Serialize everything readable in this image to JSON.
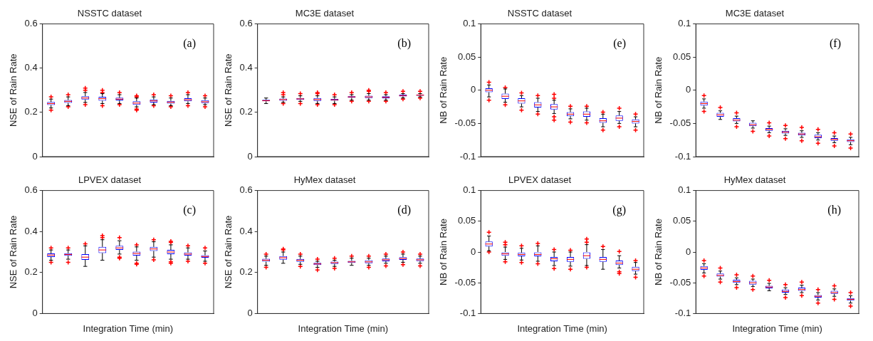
{
  "chart_data": [
    {
      "type": "box",
      "title": "NSSTC dataset",
      "ylabel": "NSE of Rain Rate",
      "annotations": [
        "(a)"
      ],
      "categories": [
        null,
        null,
        null,
        null,
        null,
        null,
        null,
        null,
        null,
        null
      ],
      "color": "#0000ff",
      "ylim": [
        0,
        0.6
      ],
      "yticks": [
        0,
        0.2,
        0.4,
        0.6
      ],
      "grid": false,
      "legend": false,
      "boxes": [
        {
          "low": 0.22,
          "q1": 0.233,
          "median": 0.24,
          "q3": 0.247,
          "high": 0.26,
          "outliers": [
            0.27,
            0.21
          ]
        },
        {
          "low": 0.23,
          "q1": 0.243,
          "median": 0.25,
          "q3": 0.256,
          "high": 0.27,
          "outliers": [
            0.28,
            0.225
          ]
        },
        {
          "low": 0.245,
          "q1": 0.258,
          "median": 0.265,
          "q3": 0.273,
          "high": 0.29,
          "outliers": [
            0.3,
            0.31,
            0.235
          ]
        },
        {
          "low": 0.24,
          "q1": 0.253,
          "median": 0.262,
          "q3": 0.27,
          "high": 0.285,
          "outliers": [
            0.29,
            0.3,
            0.23
          ]
        },
        {
          "low": 0.24,
          "q1": 0.254,
          "median": 0.26,
          "q3": 0.266,
          "high": 0.28,
          "outliers": [
            0.29,
            0.235
          ]
        },
        {
          "low": 0.225,
          "q1": 0.234,
          "median": 0.242,
          "q3": 0.25,
          "high": 0.265,
          "outliers": [
            0.27,
            0.275,
            0.215,
            0.21
          ]
        },
        {
          "low": 0.235,
          "q1": 0.245,
          "median": 0.252,
          "q3": 0.258,
          "high": 0.27,
          "outliers": [
            0.28,
            0.23
          ]
        },
        {
          "low": 0.23,
          "q1": 0.24,
          "median": 0.246,
          "q3": 0.252,
          "high": 0.265,
          "outliers": [
            0.275,
            0.225
          ]
        },
        {
          "low": 0.24,
          "q1": 0.25,
          "median": 0.257,
          "q3": 0.264,
          "high": 0.28,
          "outliers": [
            0.29,
            0.23
          ]
        },
        {
          "low": 0.235,
          "q1": 0.242,
          "median": 0.248,
          "q3": 0.255,
          "high": 0.265,
          "outliers": [
            0.275,
            0.225
          ]
        }
      ]
    },
    {
      "type": "box",
      "title": "MC3E dataset",
      "ylabel": "NSE of Rain Rate",
      "annotations": [
        "(b)"
      ],
      "categories": [
        null,
        null,
        null,
        null,
        null,
        null,
        null,
        null,
        null,
        null
      ],
      "color": "#0000ff",
      "ylim": [
        0,
        0.6
      ],
      "yticks": [
        0,
        0.2,
        0.4,
        0.6
      ],
      "grid": false,
      "legend": false,
      "boxes": [
        {
          "low": 0.24,
          "q1": 0.25,
          "median": 0.253,
          "q3": 0.257,
          "high": 0.265
        },
        {
          "low": 0.245,
          "q1": 0.253,
          "median": 0.258,
          "q3": 0.262,
          "high": 0.27,
          "outliers": [
            0.28,
            0.29,
            0.24
          ]
        },
        {
          "low": 0.25,
          "q1": 0.257,
          "median": 0.261,
          "q3": 0.265,
          "high": 0.275,
          "outliers": [
            0.285,
            0.24
          ]
        },
        {
          "low": 0.24,
          "q1": 0.252,
          "median": 0.258,
          "q3": 0.265,
          "high": 0.275,
          "outliers": [
            0.285,
            0.29,
            0.235
          ]
        },
        {
          "low": 0.24,
          "q1": 0.253,
          "median": 0.257,
          "q3": 0.261,
          "high": 0.27,
          "outliers": [
            0.28,
            0.235
          ]
        },
        {
          "low": 0.255,
          "q1": 0.266,
          "median": 0.27,
          "q3": 0.273,
          "high": 0.28,
          "outliers": [
            0.29,
            0.25
          ]
        },
        {
          "low": 0.255,
          "q1": 0.265,
          "median": 0.27,
          "q3": 0.275,
          "high": 0.285,
          "outliers": [
            0.295,
            0.3,
            0.25
          ]
        },
        {
          "low": 0.255,
          "q1": 0.264,
          "median": 0.268,
          "q3": 0.273,
          "high": 0.28,
          "outliers": [
            0.29,
            0.25
          ]
        },
        {
          "low": 0.265,
          "q1": 0.272,
          "median": 0.276,
          "q3": 0.28,
          "high": 0.285,
          "outliers": [
            0.295,
            0.26
          ]
        },
        {
          "low": 0.27,
          "q1": 0.275,
          "median": 0.278,
          "q3": 0.281,
          "high": 0.285,
          "outliers": [
            0.295,
            0.265
          ]
        }
      ]
    },
    {
      "type": "box",
      "title": "NSSTC dataset",
      "ylabel": "NB of Rain Rate",
      "annotations": [
        "(e)"
      ],
      "categories": [
        null,
        null,
        null,
        null,
        null,
        null,
        null,
        null,
        null,
        null
      ],
      "color": "#0000ff",
      "ylim": [
        -0.1,
        0.1
      ],
      "yticks": [
        -0.1,
        -0.05,
        0,
        0.05,
        0.1
      ],
      "grid": false,
      "legend": false,
      "boxes": [
        {
          "low": -0.01,
          "q1": -0.003,
          "median": 0,
          "q3": 0.003,
          "high": 0.008,
          "outliers": [
            0.012,
            -0.015
          ]
        },
        {
          "low": -0.018,
          "q1": -0.013,
          "median": -0.009,
          "q3": -0.005,
          "high": 0.002,
          "outliers": [
            0.004,
            -0.022
          ]
        },
        {
          "low": -0.025,
          "q1": -0.02,
          "median": -0.016,
          "q3": -0.012,
          "high": -0.008,
          "outliers": [
            -0.004,
            -0.03
          ]
        },
        {
          "low": -0.032,
          "q1": -0.026,
          "median": -0.022,
          "q3": -0.018,
          "high": -0.012,
          "outliers": [
            -0.008,
            -0.036
          ]
        },
        {
          "low": -0.035,
          "q1": -0.029,
          "median": -0.025,
          "q3": -0.021,
          "high": -0.015,
          "outliers": [
            -0.006,
            -0.012,
            -0.04,
            -0.045
          ]
        },
        {
          "low": -0.043,
          "q1": -0.039,
          "median": -0.036,
          "q3": -0.033,
          "high": -0.028,
          "outliers": [
            -0.024,
            -0.048
          ]
        },
        {
          "low": -0.045,
          "q1": -0.04,
          "median": -0.036,
          "q3": -0.032,
          "high": -0.027,
          "outliers": [
            -0.024,
            -0.049
          ]
        },
        {
          "low": -0.055,
          "q1": -0.049,
          "median": -0.046,
          "q3": -0.042,
          "high": -0.036,
          "outliers": [
            -0.033,
            -0.06
          ]
        },
        {
          "low": -0.05,
          "q1": -0.046,
          "median": -0.042,
          "q3": -0.038,
          "high": -0.032,
          "outliers": [
            -0.027,
            -0.055
          ]
        },
        {
          "low": -0.055,
          "q1": -0.05,
          "median": -0.047,
          "q3": -0.044,
          "high": -0.04,
          "outliers": [
            -0.036,
            -0.06
          ]
        }
      ]
    },
    {
      "type": "box",
      "title": "MC3E dataset",
      "ylabel": "NB of Rain Rate",
      "annotations": [
        "(f)"
      ],
      "categories": [
        null,
        null,
        null,
        null,
        null,
        null,
        null,
        null,
        null,
        null
      ],
      "color": "#0000ff",
      "ylim": [
        -0.1,
        0.1
      ],
      "yticks": [
        -0.1,
        -0.05,
        0,
        0.05,
        0.1
      ],
      "grid": false,
      "legend": false,
      "boxes": [
        {
          "low": -0.027,
          "q1": -0.023,
          "median": -0.02,
          "q3": -0.017,
          "high": -0.013,
          "outliers": [
            -0.008,
            -0.032
          ]
        },
        {
          "low": -0.044,
          "q1": -0.04,
          "median": -0.037,
          "q3": -0.034,
          "high": -0.031,
          "outliers": [
            -0.026
          ]
        },
        {
          "low": -0.05,
          "q1": -0.047,
          "median": -0.045,
          "q3": -0.042,
          "high": -0.039,
          "outliers": [
            -0.034,
            -0.055
          ]
        },
        {
          "low": -0.057,
          "q1": -0.054,
          "median": -0.052,
          "q3": -0.049,
          "high": -0.046,
          "outliers": [
            -0.062
          ]
        },
        {
          "low": -0.064,
          "q1": -0.061,
          "median": -0.059,
          "q3": -0.057,
          "high": -0.054,
          "outliers": [
            -0.049,
            -0.069
          ]
        },
        {
          "low": -0.068,
          "q1": -0.065,
          "median": -0.063,
          "q3": -0.061,
          "high": -0.058,
          "outliers": [
            -0.053,
            -0.073
          ]
        },
        {
          "low": -0.071,
          "q1": -0.068,
          "median": -0.066,
          "q3": -0.064,
          "high": -0.061,
          "outliers": [
            -0.056,
            -0.076
          ]
        },
        {
          "low": -0.075,
          "q1": -0.072,
          "median": -0.07,
          "q3": -0.067,
          "high": -0.064,
          "outliers": [
            -0.059,
            -0.08
          ]
        },
        {
          "low": -0.079,
          "q1": -0.076,
          "median": -0.074,
          "q3": -0.072,
          "high": -0.069,
          "outliers": [
            -0.064,
            -0.084
          ]
        },
        {
          "low": -0.082,
          "q1": -0.078,
          "median": -0.076,
          "q3": -0.074,
          "high": -0.071,
          "outliers": [
            -0.066,
            -0.087
          ]
        }
      ]
    },
    {
      "type": "box",
      "title": "LPVEX dataset",
      "xlabel": "Integration Time (min)",
      "ylabel": "NSE of Rain Rate",
      "annotations": [
        "(c)"
      ],
      "categories": [
        null,
        null,
        null,
        null,
        null,
        null,
        null,
        null,
        null,
        null
      ],
      "color": "#0000ff",
      "ylim": [
        0,
        0.6
      ],
      "yticks": [
        0,
        0.2,
        0.4,
        0.6
      ],
      "grid": false,
      "legend": false,
      "boxes": [
        {
          "low": 0.26,
          "q1": 0.276,
          "median": 0.285,
          "q3": 0.293,
          "high": 0.31,
          "outliers": [
            0.32,
            0.25
          ]
        },
        {
          "low": 0.265,
          "q1": 0.282,
          "median": 0.288,
          "q3": 0.294,
          "high": 0.31,
          "outliers": [
            0.32,
            0.25
          ]
        },
        {
          "low": 0.23,
          "q1": 0.262,
          "median": 0.275,
          "q3": 0.29,
          "high": 0.33,
          "outliers": [
            0.34
          ]
        },
        {
          "low": 0.26,
          "q1": 0.295,
          "median": 0.31,
          "q3": 0.325,
          "high": 0.36,
          "outliers": [
            0.37,
            0.38
          ]
        },
        {
          "low": 0.29,
          "q1": 0.31,
          "median": 0.32,
          "q3": 0.33,
          "high": 0.355,
          "outliers": [
            0.37,
            0.275,
            0.27
          ]
        },
        {
          "low": 0.26,
          "q1": 0.283,
          "median": 0.293,
          "q3": 0.302,
          "high": 0.325,
          "outliers": [
            0.335,
            0.245,
            0.24
          ]
        },
        {
          "low": 0.275,
          "q1": 0.305,
          "median": 0.315,
          "q3": 0.325,
          "high": 0.35,
          "outliers": [
            0.36,
            0.262
          ]
        },
        {
          "low": 0.265,
          "q1": 0.29,
          "median": 0.3,
          "q3": 0.31,
          "high": 0.335,
          "outliers": [
            0.347,
            0.352,
            0.252,
            0.245
          ]
        },
        {
          "low": 0.265,
          "q1": 0.283,
          "median": 0.29,
          "q3": 0.298,
          "high": 0.32,
          "outliers": [
            0.33,
            0.255
          ]
        },
        {
          "low": 0.255,
          "q1": 0.272,
          "median": 0.278,
          "q3": 0.284,
          "high": 0.305,
          "outliers": [
            0.32,
            0.245
          ]
        }
      ]
    },
    {
      "type": "box",
      "title": "HyMex dataset",
      "xlabel": "Integration Time (min)",
      "ylabel": "NSE of Rain Rate",
      "annotations": [
        "(d)"
      ],
      "categories": [
        null,
        null,
        null,
        null,
        null,
        null,
        null,
        null,
        null,
        null
      ],
      "color": "#0000ff",
      "ylim": [
        0,
        0.6
      ],
      "yticks": [
        0,
        0.2,
        0.4,
        0.6
      ],
      "grid": false,
      "legend": false,
      "boxes": [
        {
          "low": 0.235,
          "q1": 0.253,
          "median": 0.26,
          "q3": 0.267,
          "high": 0.28,
          "outliers": [
            0.29,
            0.225
          ]
        },
        {
          "low": 0.245,
          "q1": 0.263,
          "median": 0.272,
          "q3": 0.28,
          "high": 0.3,
          "outliers": [
            0.31,
            0.315
          ]
        },
        {
          "low": 0.24,
          "q1": 0.252,
          "median": 0.26,
          "q3": 0.266,
          "high": 0.28,
          "outliers": [
            0.29,
            0.23
          ]
        },
        {
          "low": 0.225,
          "q1": 0.237,
          "median": 0.242,
          "q3": 0.247,
          "high": 0.255,
          "outliers": [
            0.265,
            0.212
          ]
        },
        {
          "low": 0.23,
          "q1": 0.242,
          "median": 0.248,
          "q3": 0.253,
          "high": 0.26,
          "outliers": [
            0.27,
            0.22
          ]
        },
        {
          "low": 0.235,
          "q1": 0.247,
          "median": 0.252,
          "q3": 0.257,
          "high": 0.27,
          "outliers": [
            0.28
          ]
        },
        {
          "low": 0.235,
          "q1": 0.245,
          "median": 0.252,
          "q3": 0.26,
          "high": 0.27,
          "outliers": [
            0.28,
            0.225
          ]
        },
        {
          "low": 0.245,
          "q1": 0.255,
          "median": 0.262,
          "q3": 0.268,
          "high": 0.28,
          "outliers": [
            0.29,
            0.232
          ]
        },
        {
          "low": 0.25,
          "q1": 0.262,
          "median": 0.268,
          "q3": 0.275,
          "high": 0.29,
          "outliers": [
            0.3,
            0.238
          ]
        },
        {
          "low": 0.245,
          "q1": 0.256,
          "median": 0.262,
          "q3": 0.268,
          "high": 0.28,
          "outliers": [
            0.29,
            0.232
          ]
        }
      ]
    },
    {
      "type": "box",
      "title": "LPVEX dataset",
      "xlabel": "Integration Time (min)",
      "ylabel": "NB of Rain Rate",
      "annotations": [
        "(g)"
      ],
      "categories": [
        null,
        null,
        null,
        null,
        null,
        null,
        null,
        null,
        null,
        null
      ],
      "color": "#0000ff",
      "ylim": [
        -0.1,
        0.1
      ],
      "yticks": [
        -0.1,
        -0.05,
        0,
        0.05,
        0.1
      ],
      "grid": false,
      "legend": false,
      "boxes": [
        {
          "low": 0.002,
          "q1": 0.009,
          "median": 0.013,
          "q3": 0.017,
          "high": 0.026,
          "outliers": [
            0.032,
            0
          ]
        },
        {
          "low": -0.012,
          "q1": -0.006,
          "median": -0.003,
          "q3": 0,
          "high": 0.008,
          "outliers": [
            0.012,
            0.016,
            -0.016
          ]
        },
        {
          "low": -0.013,
          "q1": -0.007,
          "median": -0.004,
          "q3": -0.001,
          "high": 0.006,
          "outliers": [
            0.01,
            -0.017
          ]
        },
        {
          "low": -0.015,
          "q1": -0.007,
          "median": -0.004,
          "q3": 0,
          "high": 0.01,
          "outliers": [
            0.014,
            -0.019
          ]
        },
        {
          "low": -0.022,
          "q1": -0.015,
          "median": -0.011,
          "q3": -0.008,
          "high": 0,
          "outliers": [
            0.004,
            -0.027
          ]
        },
        {
          "low": -0.023,
          "q1": -0.016,
          "median": -0.012,
          "q3": -0.008,
          "high": 0,
          "outliers": [
            0.003,
            -0.028
          ]
        },
        {
          "low": -0.022,
          "q1": -0.011,
          "median": -0.006,
          "q3": 0,
          "high": 0.012,
          "outliers": [
            0.016,
            0.021,
            -0.025
          ]
        },
        {
          "low": -0.028,
          "q1": -0.016,
          "median": -0.012,
          "q3": -0.008,
          "high": 0.004,
          "outliers": [
            0.009
          ]
        },
        {
          "low": -0.026,
          "q1": -0.021,
          "median": -0.018,
          "q3": -0.014,
          "high": -0.006,
          "outliers": [
            0.001,
            -0.032,
            -0.035
          ]
        },
        {
          "low": -0.036,
          "q1": -0.031,
          "median": -0.028,
          "q3": -0.024,
          "high": -0.017,
          "outliers": [
            -0.014,
            -0.041
          ]
        }
      ]
    },
    {
      "type": "box",
      "title": "HyMex dataset",
      "xlabel": "Integration Time (min)",
      "ylabel": "NB of Rain Rate",
      "annotations": [
        "(h)"
      ],
      "categories": [
        null,
        null,
        null,
        null,
        null,
        null,
        null,
        null,
        null,
        null
      ],
      "color": "#0000ff",
      "ylim": [
        -0.1,
        0.1
      ],
      "yticks": [
        -0.1,
        -0.05,
        0,
        0.05,
        0.1
      ],
      "grid": false,
      "legend": false,
      "boxes": [
        {
          "low": -0.034,
          "q1": -0.029,
          "median": -0.026,
          "q3": -0.023,
          "high": -0.019,
          "outliers": [
            -0.014,
            -0.039
          ]
        },
        {
          "low": -0.044,
          "q1": -0.04,
          "median": -0.038,
          "q3": -0.035,
          "high": -0.031,
          "outliers": [
            -0.026,
            -0.049
          ]
        },
        {
          "low": -0.053,
          "q1": -0.05,
          "median": -0.048,
          "q3": -0.045,
          "high": -0.042,
          "outliers": [
            -0.037,
            -0.058
          ]
        },
        {
          "low": -0.056,
          "q1": -0.053,
          "median": -0.05,
          "q3": -0.047,
          "high": -0.044,
          "outliers": [
            -0.039,
            -0.061
          ]
        },
        {
          "low": -0.063,
          "q1": -0.059,
          "median": -0.057,
          "q3": -0.055,
          "high": -0.051,
          "outliers": [
            -0.046
          ]
        },
        {
          "low": -0.069,
          "q1": -0.066,
          "median": -0.064,
          "q3": -0.061,
          "high": -0.058,
          "outliers": [
            -0.053,
            -0.074
          ]
        },
        {
          "low": -0.066,
          "q1": -0.063,
          "median": -0.061,
          "q3": -0.058,
          "high": -0.054,
          "outliers": [
            -0.049,
            -0.071
          ]
        },
        {
          "low": -0.078,
          "q1": -0.074,
          "median": -0.072,
          "q3": -0.07,
          "high": -0.066,
          "outliers": [
            -0.061,
            -0.083
          ]
        },
        {
          "low": -0.072,
          "q1": -0.068,
          "median": -0.066,
          "q3": -0.063,
          "high": -0.06,
          "outliers": [
            -0.055,
            -0.077
          ]
        },
        {
          "low": -0.083,
          "q1": -0.079,
          "median": -0.077,
          "q3": -0.075,
          "high": -0.071,
          "outliers": [
            -0.066,
            -0.088
          ]
        }
      ]
    }
  ]
}
